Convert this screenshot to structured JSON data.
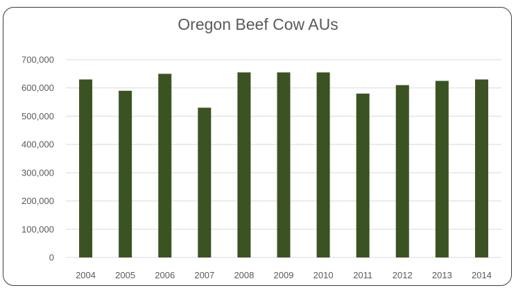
{
  "chart_data": {
    "type": "bar",
    "title": "Oregon Beef Cow AUs",
    "xlabel": "",
    "ylabel": "",
    "categories": [
      "2004",
      "2005",
      "2006",
      "2007",
      "2008",
      "2009",
      "2010",
      "2011",
      "2012",
      "2013",
      "2014"
    ],
    "values": [
      630000,
      590000,
      650000,
      530000,
      655000,
      655000,
      655000,
      580000,
      610000,
      625000,
      630000
    ],
    "ylim": [
      0,
      700000
    ],
    "yticks": [
      0,
      100000,
      200000,
      300000,
      400000,
      500000,
      600000,
      700000
    ],
    "ytick_labels": [
      "0",
      "100,000",
      "200,000",
      "300,000",
      "400,000",
      "500,000",
      "600,000",
      "700,000"
    ],
    "grid": true,
    "legend": "none",
    "bar_color": "#3b5323",
    "grid_color": "#d9d9d9"
  }
}
